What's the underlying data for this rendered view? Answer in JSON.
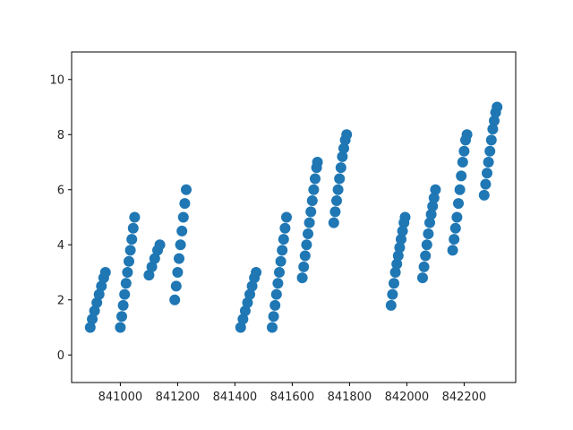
{
  "chart_data": {
    "type": "scatter",
    "title": "",
    "xlabel": "",
    "ylabel": "",
    "xlim": [
      840830,
      842380
    ],
    "ylim": [
      -1,
      11
    ],
    "grid": false,
    "legend": "none",
    "marker_color": "#1f77b4",
    "x_ticks": [
      841000,
      841200,
      841400,
      841600,
      841800,
      842000,
      842200
    ],
    "x_tick_labels": [
      "841000",
      "841200",
      "841400",
      "841600",
      "841800",
      "842000",
      "842200"
    ],
    "y_ticks": [
      0,
      2,
      4,
      6,
      8,
      10
    ],
    "y_tick_labels": [
      "0",
      "2",
      "4",
      "6",
      "8",
      "10"
    ],
    "series": [
      {
        "points": [
          {
            "x": 840895,
            "y": 1.0
          },
          {
            "x": 840902,
            "y": 1.3
          },
          {
            "x": 840910,
            "y": 1.6
          },
          {
            "x": 840918,
            "y": 1.9
          },
          {
            "x": 840926,
            "y": 2.2
          },
          {
            "x": 840934,
            "y": 2.5
          },
          {
            "x": 840942,
            "y": 2.8
          },
          {
            "x": 840948,
            "y": 3.0
          },
          {
            "x": 841000,
            "y": 1.0
          },
          {
            "x": 841005,
            "y": 1.4
          },
          {
            "x": 841010,
            "y": 1.8
          },
          {
            "x": 841015,
            "y": 2.2
          },
          {
            "x": 841020,
            "y": 2.6
          },
          {
            "x": 841025,
            "y": 3.0
          },
          {
            "x": 841030,
            "y": 3.4
          },
          {
            "x": 841035,
            "y": 3.8
          },
          {
            "x": 841040,
            "y": 4.2
          },
          {
            "x": 841045,
            "y": 4.6
          },
          {
            "x": 841050,
            "y": 5.0
          },
          {
            "x": 841100,
            "y": 2.9
          },
          {
            "x": 841110,
            "y": 3.2
          },
          {
            "x": 841120,
            "y": 3.5
          },
          {
            "x": 841130,
            "y": 3.8
          },
          {
            "x": 841138,
            "y": 4.0
          },
          {
            "x": 841190,
            "y": 2.0
          },
          {
            "x": 841195,
            "y": 2.5
          },
          {
            "x": 841200,
            "y": 3.0
          },
          {
            "x": 841205,
            "y": 3.5
          },
          {
            "x": 841210,
            "y": 4.0
          },
          {
            "x": 841215,
            "y": 4.5
          },
          {
            "x": 841220,
            "y": 5.0
          },
          {
            "x": 841225,
            "y": 5.5
          },
          {
            "x": 841230,
            "y": 6.0
          },
          {
            "x": 841420,
            "y": 1.0
          },
          {
            "x": 841428,
            "y": 1.3
          },
          {
            "x": 841436,
            "y": 1.6
          },
          {
            "x": 841444,
            "y": 1.9
          },
          {
            "x": 841452,
            "y": 2.2
          },
          {
            "x": 841460,
            "y": 2.5
          },
          {
            "x": 841468,
            "y": 2.8
          },
          {
            "x": 841474,
            "y": 3.0
          },
          {
            "x": 841530,
            "y": 1.0
          },
          {
            "x": 841535,
            "y": 1.4
          },
          {
            "x": 841540,
            "y": 1.8
          },
          {
            "x": 841545,
            "y": 2.2
          },
          {
            "x": 841550,
            "y": 2.6
          },
          {
            "x": 841555,
            "y": 3.0
          },
          {
            "x": 841560,
            "y": 3.4
          },
          {
            "x": 841565,
            "y": 3.8
          },
          {
            "x": 841570,
            "y": 4.2
          },
          {
            "x": 841575,
            "y": 4.6
          },
          {
            "x": 841580,
            "y": 5.0
          },
          {
            "x": 841635,
            "y": 2.8
          },
          {
            "x": 841640,
            "y": 3.2
          },
          {
            "x": 841645,
            "y": 3.6
          },
          {
            "x": 841650,
            "y": 4.0
          },
          {
            "x": 841655,
            "y": 4.4
          },
          {
            "x": 841660,
            "y": 4.8
          },
          {
            "x": 841665,
            "y": 5.2
          },
          {
            "x": 841670,
            "y": 5.6
          },
          {
            "x": 841675,
            "y": 6.0
          },
          {
            "x": 841680,
            "y": 6.4
          },
          {
            "x": 841685,
            "y": 6.8
          },
          {
            "x": 841688,
            "y": 7.0
          },
          {
            "x": 841745,
            "y": 4.8
          },
          {
            "x": 841750,
            "y": 5.2
          },
          {
            "x": 841755,
            "y": 5.6
          },
          {
            "x": 841760,
            "y": 6.0
          },
          {
            "x": 841765,
            "y": 6.4
          },
          {
            "x": 841770,
            "y": 6.8
          },
          {
            "x": 841775,
            "y": 7.2
          },
          {
            "x": 841780,
            "y": 7.5
          },
          {
            "x": 841785,
            "y": 7.8
          },
          {
            "x": 841790,
            "y": 8.0
          },
          {
            "x": 841945,
            "y": 1.8
          },
          {
            "x": 841950,
            "y": 2.2
          },
          {
            "x": 841955,
            "y": 2.6
          },
          {
            "x": 841960,
            "y": 3.0
          },
          {
            "x": 841965,
            "y": 3.3
          },
          {
            "x": 841970,
            "y": 3.6
          },
          {
            "x": 841975,
            "y": 3.9
          },
          {
            "x": 841980,
            "y": 4.2
          },
          {
            "x": 841985,
            "y": 4.5
          },
          {
            "x": 841990,
            "y": 4.8
          },
          {
            "x": 841994,
            "y": 5.0
          },
          {
            "x": 842055,
            "y": 2.8
          },
          {
            "x": 842060,
            "y": 3.2
          },
          {
            "x": 842065,
            "y": 3.6
          },
          {
            "x": 842070,
            "y": 4.0
          },
          {
            "x": 842075,
            "y": 4.4
          },
          {
            "x": 842080,
            "y": 4.8
          },
          {
            "x": 842085,
            "y": 5.1
          },
          {
            "x": 842090,
            "y": 5.4
          },
          {
            "x": 842095,
            "y": 5.7
          },
          {
            "x": 842100,
            "y": 6.0
          },
          {
            "x": 842160,
            "y": 3.8
          },
          {
            "x": 842165,
            "y": 4.2
          },
          {
            "x": 842170,
            "y": 4.6
          },
          {
            "x": 842175,
            "y": 5.0
          },
          {
            "x": 842180,
            "y": 5.5
          },
          {
            "x": 842185,
            "y": 6.0
          },
          {
            "x": 842190,
            "y": 6.5
          },
          {
            "x": 842195,
            "y": 7.0
          },
          {
            "x": 842200,
            "y": 7.4
          },
          {
            "x": 842205,
            "y": 7.8
          },
          {
            "x": 842210,
            "y": 8.0
          },
          {
            "x": 842270,
            "y": 5.8
          },
          {
            "x": 842275,
            "y": 6.2
          },
          {
            "x": 842280,
            "y": 6.6
          },
          {
            "x": 842285,
            "y": 7.0
          },
          {
            "x": 842290,
            "y": 7.4
          },
          {
            "x": 842295,
            "y": 7.8
          },
          {
            "x": 842300,
            "y": 8.2
          },
          {
            "x": 842305,
            "y": 8.5
          },
          {
            "x": 842310,
            "y": 8.8
          },
          {
            "x": 842315,
            "y": 9.0
          }
        ]
      }
    ]
  }
}
